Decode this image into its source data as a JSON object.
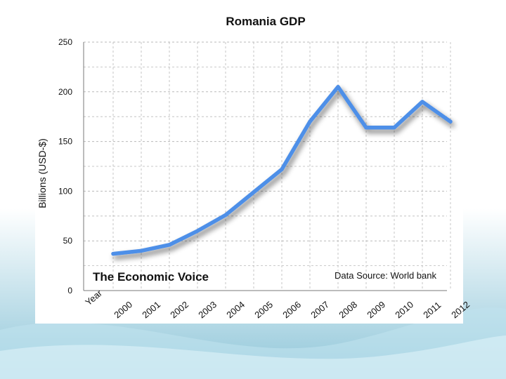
{
  "chart_data": {
    "type": "line",
    "title": "Romania GDP",
    "xlabel": "",
    "ylabel": "Billions (USD-$)",
    "x_axis_caption": "Year",
    "categories": [
      "2000",
      "2001",
      "2002",
      "2003",
      "2004",
      "2005",
      "2006",
      "2007",
      "2008",
      "2009",
      "2010",
      "2011",
      "2012"
    ],
    "series": [
      {
        "name": "GDP",
        "values": [
          37,
          40,
          46,
          60,
          76,
          99,
          122,
          170,
          205,
          164,
          164,
          190,
          170
        ]
      }
    ],
    "ylim": [
      0,
      250
    ],
    "yticks": [
      "0",
      "50",
      "100",
      "150",
      "200",
      "250"
    ],
    "grid": true,
    "annotations": {
      "brand": "The Economic Voice",
      "source": "Data Source: World bank"
    },
    "colors": {
      "line": "#4e8fe8",
      "shadow": "#8a8a8a",
      "grid": "#b9b9b9",
      "axis": "#7a7a7a",
      "text": "#111111"
    }
  },
  "slide": {
    "background_top": "#ffffff",
    "background_bottom": "#8fc6d9",
    "wave_color": "#bfe3ee"
  }
}
